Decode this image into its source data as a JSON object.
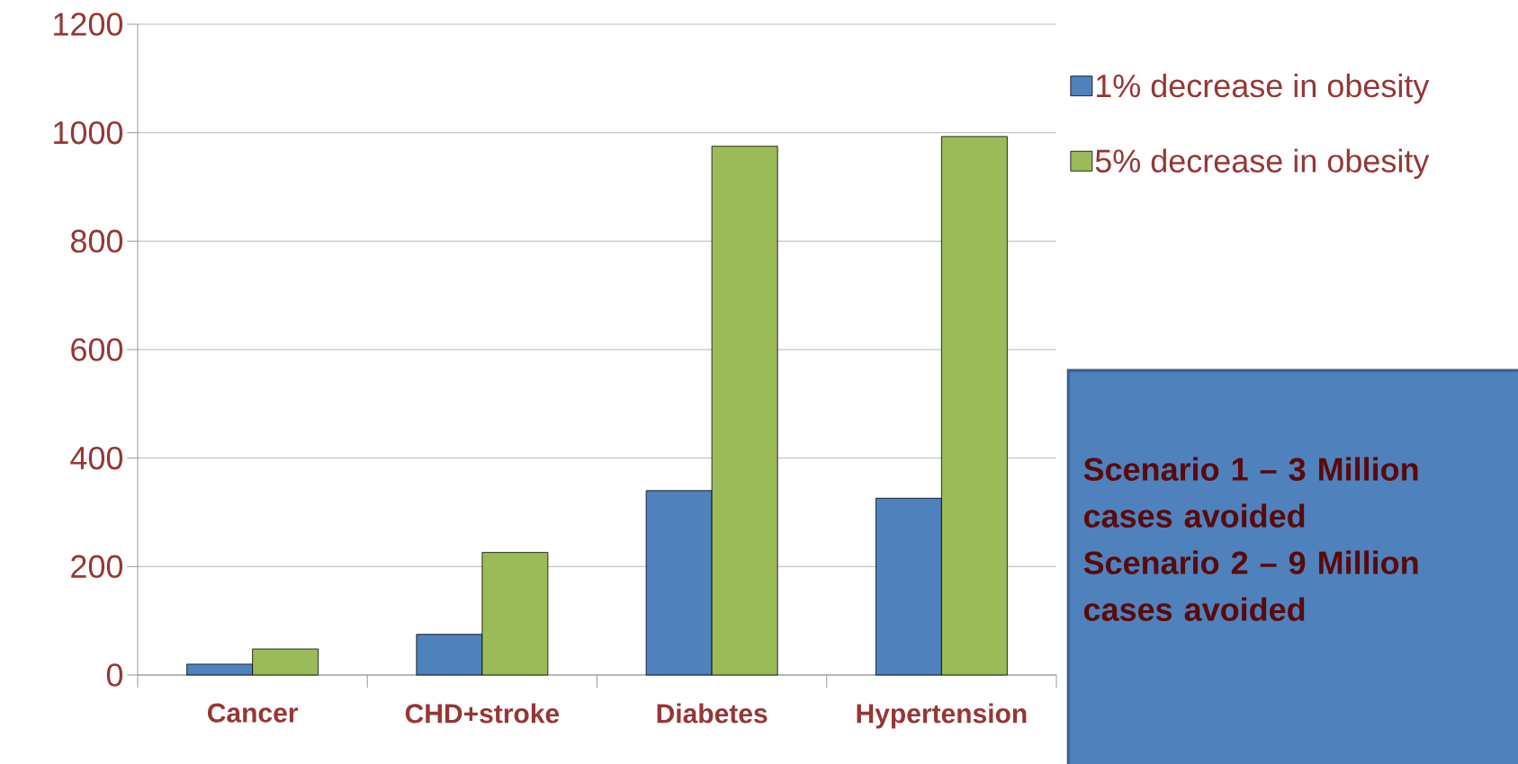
{
  "chart_data": {
    "type": "bar",
    "categories": [
      "Cancer",
      "CHD+stroke",
      "Diabetes",
      "Hypertension"
    ],
    "series": [
      {
        "name": "1% decrease in obesity",
        "color": "#4f81bd",
        "values": [
          20,
          75,
          340,
          326
        ]
      },
      {
        "name": "5% decrease in obesity",
        "color": "#9bbb59",
        "values": [
          48,
          226,
          975,
          993
        ]
      }
    ],
    "ylim": [
      0,
      1200
    ],
    "yticks": [
      0,
      200,
      400,
      600,
      800,
      1000,
      1200
    ],
    "grid": "y",
    "legend": "top right",
    "annotations": [
      "Scenario 1 – 3 Million cases avoided",
      "Scenario 2 – 9 Million cases avoided"
    ]
  }
}
